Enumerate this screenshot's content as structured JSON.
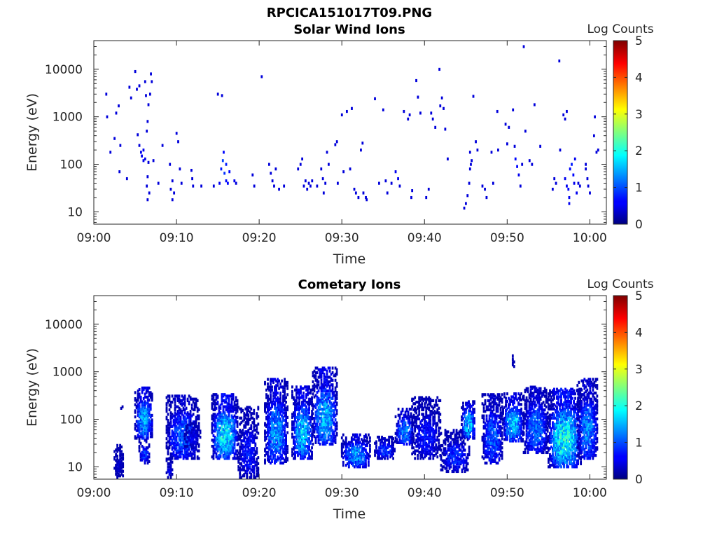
{
  "figure": {
    "title": "RPCICA151017T09.PNG",
    "colorbar_label": "Log Counts"
  },
  "chart_data": [
    {
      "type": "heatmap",
      "title": "Solar Wind Ions",
      "xlabel": "Time",
      "ylabel": "Energy (eV)",
      "x_ticks": [
        "09:00",
        "09:10",
        "09:20",
        "09:30",
        "09:40",
        "09:50",
        "10:00"
      ],
      "x_range_minutes": [
        0,
        62
      ],
      "y_ticks": [
        "10",
        "100",
        "1000",
        "10000"
      ],
      "y_range_eV": [
        5.5,
        40000
      ],
      "y_scale": "log",
      "colorbar": {
        "label": "Log Counts",
        "range": [
          0,
          5
        ],
        "ticks": [
          "0",
          "1",
          "2",
          "3",
          "4",
          "5"
        ]
      },
      "points": [
        [
          1.5,
          3000,
          0.3
        ],
        [
          1.6,
          1000,
          0.3
        ],
        [
          2,
          180,
          0.3
        ],
        [
          2.5,
          350,
          0.3
        ],
        [
          2.7,
          1200,
          0.3
        ],
        [
          3,
          1700,
          0.3
        ],
        [
          3.2,
          250,
          0.3
        ],
        [
          3.1,
          70,
          0.3
        ],
        [
          4,
          50,
          0.3
        ],
        [
          4.3,
          4200,
          0.3
        ],
        [
          4.5,
          2500,
          0.3
        ],
        [
          5,
          9000,
          0.3
        ],
        [
          5.2,
          3800,
          0.3
        ],
        [
          5.3,
          420,
          0.3
        ],
        [
          5.5,
          4500,
          0.3
        ],
        [
          5.5,
          250,
          0.3
        ],
        [
          5.7,
          180,
          0.4
        ],
        [
          5.8,
          150,
          0.4
        ],
        [
          6,
          200,
          0.4
        ],
        [
          6,
          120,
          0.4
        ],
        [
          6.2,
          130,
          0.4
        ],
        [
          6.2,
          5500,
          0.3
        ],
        [
          6.3,
          2800,
          0.3
        ],
        [
          6.4,
          500,
          0.3
        ],
        [
          6.5,
          800,
          0.3
        ],
        [
          6.6,
          1800,
          0.3
        ],
        [
          6.6,
          110,
          0.3
        ],
        [
          6.5,
          55,
          0.3
        ],
        [
          6.4,
          35,
          0.3
        ],
        [
          6.5,
          18,
          0.3
        ],
        [
          6.7,
          25,
          0.3
        ],
        [
          6.9,
          8000,
          0.3
        ],
        [
          7,
          5500,
          0.3
        ],
        [
          6.8,
          3000,
          0.3
        ],
        [
          7.2,
          120,
          0.3
        ],
        [
          7.8,
          40,
          0.3
        ],
        [
          8.3,
          250,
          0.3
        ],
        [
          9.2,
          100,
          0.3
        ],
        [
          9.3,
          30,
          0.3
        ],
        [
          9.5,
          45,
          0.3
        ],
        [
          9.7,
          25,
          0.3
        ],
        [
          9.5,
          18,
          0.3
        ],
        [
          10,
          450,
          0.3
        ],
        [
          10.2,
          300,
          0.3
        ],
        [
          10.4,
          80,
          0.3
        ],
        [
          10.6,
          40,
          0.3
        ],
        [
          11.8,
          75,
          0.3
        ],
        [
          11.9,
          50,
          0.3
        ],
        [
          12,
          35,
          0.3
        ],
        [
          13,
          35,
          0.3
        ],
        [
          14.5,
          35,
          0.3
        ],
        [
          15,
          3000,
          0.3
        ],
        [
          15.2,
          40,
          0.4
        ],
        [
          15.4,
          80,
          0.6
        ],
        [
          15.6,
          120,
          0.8
        ],
        [
          15.7,
          180,
          0.5
        ],
        [
          15.8,
          65,
          0.7
        ],
        [
          16,
          100,
          0.6
        ],
        [
          16,
          45,
          0.5
        ],
        [
          16.2,
          40,
          0.5
        ],
        [
          16.4,
          70,
          0.5
        ],
        [
          15.5,
          2800,
          0.3
        ],
        [
          17,
          45,
          0.4
        ],
        [
          17.2,
          40,
          0.3
        ],
        [
          19.2,
          60,
          0.3
        ],
        [
          19.4,
          35,
          0.3
        ],
        [
          20.3,
          7000,
          0.3
        ],
        [
          21.2,
          100,
          0.3
        ],
        [
          21.4,
          65,
          0.3
        ],
        [
          21.6,
          45,
          0.3
        ],
        [
          21.8,
          35,
          0.3
        ],
        [
          22,
          80,
          0.3
        ],
        [
          22.4,
          30,
          0.3
        ],
        [
          23,
          35,
          0.3
        ],
        [
          24.7,
          80,
          0.3
        ],
        [
          25,
          100,
          0.3
        ],
        [
          25.2,
          130,
          0.3
        ],
        [
          25.4,
          35,
          0.3
        ],
        [
          25.6,
          45,
          0.3
        ],
        [
          25.8,
          30,
          0.3
        ],
        [
          26,
          40,
          0.3
        ],
        [
          26.2,
          35,
          0.3
        ],
        [
          26.4,
          45,
          0.3
        ],
        [
          27,
          35,
          0.3
        ],
        [
          27.5,
          80,
          0.3
        ],
        [
          27.7,
          50,
          0.3
        ],
        [
          27.8,
          25,
          0.3
        ],
        [
          28,
          40,
          0.3
        ],
        [
          28.2,
          180,
          0.3
        ],
        [
          28.4,
          100,
          0.3
        ],
        [
          29.2,
          260,
          0.3
        ],
        [
          29.4,
          300,
          0.3
        ],
        [
          29.5,
          40,
          0.3
        ],
        [
          30,
          1100,
          0.3
        ],
        [
          30.2,
          70,
          0.3
        ],
        [
          30.6,
          1300,
          0.3
        ],
        [
          31,
          80,
          0.3
        ],
        [
          31.2,
          1500,
          0.3
        ],
        [
          31.5,
          30,
          0.3
        ],
        [
          31.7,
          25,
          0.3
        ],
        [
          32,
          20,
          0.3
        ],
        [
          32.3,
          200,
          0.3
        ],
        [
          32.5,
          280,
          0.3
        ],
        [
          32.6,
          25,
          0.3
        ],
        [
          32.9,
          20,
          0.3
        ],
        [
          33,
          18,
          0.3
        ],
        [
          34,
          2400,
          0.3
        ],
        [
          34.5,
          40,
          0.3
        ],
        [
          35,
          1400,
          0.3
        ],
        [
          35.3,
          45,
          0.3
        ],
        [
          35.5,
          25,
          0.3
        ],
        [
          36,
          40,
          0.3
        ],
        [
          36.5,
          70,
          0.4
        ],
        [
          36.8,
          50,
          0.4
        ],
        [
          37,
          35,
          0.3
        ],
        [
          37.5,
          1300,
          0.3
        ],
        [
          38,
          900,
          0.3
        ],
        [
          38.2,
          1100,
          0.3
        ],
        [
          38.4,
          20,
          0.3
        ],
        [
          38.5,
          28,
          0.3
        ],
        [
          39,
          5800,
          0.3
        ],
        [
          39.2,
          2600,
          0.3
        ],
        [
          39.5,
          1200,
          0.3
        ],
        [
          40.2,
          20,
          0.3
        ],
        [
          40.5,
          30,
          0.3
        ],
        [
          40.8,
          1200,
          0.3
        ],
        [
          41,
          900,
          0.3
        ],
        [
          41.3,
          600,
          0.3
        ],
        [
          41.8,
          10000,
          0.3
        ],
        [
          41.9,
          1700,
          0.3
        ],
        [
          42.1,
          2500,
          0.3
        ],
        [
          42.3,
          1500,
          0.3
        ],
        [
          42.5,
          550,
          0.3
        ],
        [
          42.8,
          130,
          0.3
        ],
        [
          44.8,
          12,
          0.3
        ],
        [
          45,
          15,
          0.3
        ],
        [
          45.2,
          22,
          0.3
        ],
        [
          45.4,
          40,
          0.3
        ],
        [
          45.5,
          80,
          0.3
        ],
        [
          45.6,
          100,
          0.3
        ],
        [
          45.7,
          120,
          0.3
        ],
        [
          45.5,
          180,
          0.3
        ],
        [
          45.9,
          2700,
          0.3
        ],
        [
          46.2,
          300,
          0.3
        ],
        [
          46.4,
          200,
          0.3
        ],
        [
          47,
          35,
          0.3
        ],
        [
          47.3,
          30,
          0.3
        ],
        [
          47.5,
          20,
          0.3
        ],
        [
          48.1,
          180,
          0.3
        ],
        [
          48.3,
          40,
          0.3
        ],
        [
          48.8,
          1300,
          0.3
        ],
        [
          48.9,
          200,
          0.3
        ],
        [
          49.8,
          700,
          0.3
        ],
        [
          50,
          270,
          0.3
        ],
        [
          50.2,
          600,
          0.3
        ],
        [
          50.7,
          1400,
          0.3
        ],
        [
          50.9,
          240,
          0.3
        ],
        [
          51,
          130,
          0.5
        ],
        [
          51.2,
          90,
          0.5
        ],
        [
          51.4,
          60,
          0.4
        ],
        [
          51.6,
          35,
          0.3
        ],
        [
          51.8,
          100,
          0.3
        ],
        [
          52,
          30000,
          0.3
        ],
        [
          52.2,
          500,
          0.3
        ],
        [
          52.7,
          120,
          0.3
        ],
        [
          53,
          100,
          0.3
        ],
        [
          53.3,
          1800,
          0.3
        ],
        [
          54,
          240,
          0.3
        ],
        [
          55.5,
          30,
          0.3
        ],
        [
          55.7,
          50,
          0.3
        ],
        [
          55.9,
          40,
          0.3
        ],
        [
          56.3,
          15000,
          0.3
        ],
        [
          56.4,
          200,
          0.3
        ],
        [
          56.8,
          1100,
          0.3
        ],
        [
          57,
          900,
          0.3
        ],
        [
          57.2,
          1300,
          0.3
        ],
        [
          57,
          50,
          0.4
        ],
        [
          57.2,
          35,
          0.4
        ],
        [
          57.4,
          30,
          0.5
        ],
        [
          57.5,
          20,
          0.4
        ],
        [
          57.5,
          15,
          0.4
        ],
        [
          57.6,
          80,
          0.5
        ],
        [
          57.8,
          100,
          0.6
        ],
        [
          58,
          60,
          0.5
        ],
        [
          58.1,
          40,
          0.4
        ],
        [
          58.2,
          130,
          0.4
        ],
        [
          58.4,
          25,
          0.4
        ],
        [
          58.6,
          40,
          0.3
        ],
        [
          58.8,
          35,
          0.3
        ],
        [
          59.5,
          100,
          0.3
        ],
        [
          59.5,
          80,
          0.3
        ],
        [
          59.7,
          50,
          0.3
        ],
        [
          59.8,
          35,
          0.3
        ],
        [
          60,
          25,
          0.3
        ],
        [
          60.5,
          400,
          0.3
        ],
        [
          60.6,
          1000,
          0.3
        ],
        [
          60.8,
          180,
          0.3
        ],
        [
          61,
          200,
          0.3
        ]
      ]
    },
    {
      "type": "heatmap",
      "title": "Cometary Ions",
      "xlabel": "Time",
      "ylabel": "Energy (eV)",
      "x_ticks": [
        "09:00",
        "09:10",
        "09:20",
        "09:30",
        "09:40",
        "09:50",
        "10:00"
      ],
      "x_range_minutes": [
        0,
        62
      ],
      "y_ticks": [
        "10",
        "100",
        "1000",
        "10000"
      ],
      "y_range_eV": [
        5.5,
        40000
      ],
      "y_scale": "log",
      "colorbar": {
        "label": "Log Counts",
        "range": [
          0,
          5
        ],
        "ticks": [
          "0",
          "1",
          "2",
          "3",
          "4",
          "5"
        ]
      },
      "blobs": [
        {
          "t0": 2.5,
          "t1": 3.6,
          "e0": 6,
          "e1": 30,
          "peak": 0.4,
          "density": 0.7
        },
        {
          "t0": 3.3,
          "t1": 3.5,
          "e0": 170,
          "e1": 200,
          "peak": 0.3,
          "density": 1
        },
        {
          "t0": 5.0,
          "t1": 7.2,
          "e0": 40,
          "e1": 480,
          "peak": 1.6,
          "density": 0.75
        },
        {
          "t0": 5.5,
          "t1": 6.8,
          "e0": 12,
          "e1": 40,
          "peak": 1.0,
          "density": 0.6
        },
        {
          "t0": 8.8,
          "t1": 12.8,
          "e0": 15,
          "e1": 320,
          "peak": 1.2,
          "density": 0.7
        },
        {
          "t0": 8.8,
          "t1": 9.6,
          "e0": 6,
          "e1": 15,
          "peak": 0.6,
          "density": 0.8
        },
        {
          "t0": 11.0,
          "t1": 13.0,
          "e0": 25,
          "e1": 100,
          "peak": 0.6,
          "density": 0.5
        },
        {
          "t0": 14.3,
          "t1": 17.5,
          "e0": 15,
          "e1": 350,
          "peak": 2.0,
          "density": 0.8
        },
        {
          "t0": 17.5,
          "t1": 20.0,
          "e0": 6,
          "e1": 180,
          "peak": 0.8,
          "density": 0.6
        },
        {
          "t0": 20.7,
          "t1": 23.5,
          "e0": 12,
          "e1": 700,
          "peak": 1.5,
          "density": 0.7
        },
        {
          "t0": 24.0,
          "t1": 26.5,
          "e0": 15,
          "e1": 480,
          "peak": 1.8,
          "density": 0.75
        },
        {
          "t0": 26.5,
          "t1": 29.5,
          "e0": 30,
          "e1": 1200,
          "peak": 1.7,
          "density": 0.7
        },
        {
          "t0": 30.0,
          "t1": 33.5,
          "e0": 10,
          "e1": 50,
          "peak": 1.5,
          "density": 0.75
        },
        {
          "t0": 34.0,
          "t1": 36.5,
          "e0": 15,
          "e1": 45,
          "peak": 1.0,
          "density": 0.6
        },
        {
          "t0": 36.5,
          "t1": 38.8,
          "e0": 30,
          "e1": 170,
          "peak": 1.4,
          "density": 0.7
        },
        {
          "t0": 38.5,
          "t1": 42.0,
          "e0": 15,
          "e1": 300,
          "peak": 0.8,
          "density": 0.6
        },
        {
          "t0": 42.0,
          "t1": 45.5,
          "e0": 8,
          "e1": 60,
          "peak": 0.9,
          "density": 0.65
        },
        {
          "t0": 44.5,
          "t1": 46.2,
          "e0": 40,
          "e1": 250,
          "peak": 1.8,
          "density": 0.75
        },
        {
          "t0": 47.0,
          "t1": 49.5,
          "e0": 12,
          "e1": 350,
          "peak": 1.2,
          "density": 0.7
        },
        {
          "t0": 49.5,
          "t1": 52.0,
          "e0": 35,
          "e1": 350,
          "peak": 1.8,
          "density": 0.75
        },
        {
          "t0": 50.5,
          "t1": 51.0,
          "e0": 1200,
          "e1": 2300,
          "peak": 0.3,
          "density": 0.8
        },
        {
          "t0": 52.0,
          "t1": 55.0,
          "e0": 20,
          "e1": 500,
          "peak": 1.3,
          "density": 0.7
        },
        {
          "t0": 55.0,
          "t1": 59.0,
          "e0": 10,
          "e1": 450,
          "peak": 2.2,
          "density": 0.8
        },
        {
          "t0": 58.5,
          "t1": 61.0,
          "e0": 15,
          "e1": 700,
          "peak": 1.4,
          "density": 0.7
        }
      ]
    }
  ]
}
